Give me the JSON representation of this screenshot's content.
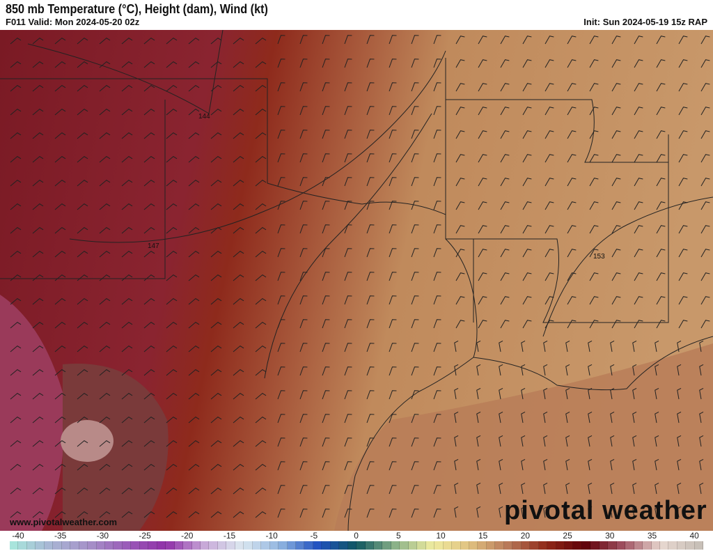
{
  "header": {
    "title": "850 mb Temperature (°C), Height (dam), Wind (kt)",
    "valid": "F011 Valid: Mon 2024-05-20 02z",
    "init": "Init: Sun 2024-05-19 15z RAP"
  },
  "map": {
    "contour_labels": [
      "144",
      "147",
      "153"
    ]
  },
  "footer": {
    "website": "www.pivotalweather.com",
    "logo": "pivotal weather"
  },
  "colorbar": {
    "labels": [
      "-40",
      "-35",
      "-30",
      "-25",
      "-20",
      "-15",
      "-10",
      "-5",
      "0",
      "5",
      "10",
      "15",
      "20",
      "25",
      "30",
      "35",
      "40"
    ],
    "stops": [
      "#a8e4dc",
      "#a8b4d4",
      "#a690c8",
      "#9a5ab8",
      "#9030a8",
      "#c8a8d8",
      "#dce8f0",
      "#90b4e0",
      "#2050c0",
      "#105860",
      "#88b088",
      "#f0eca0",
      "#e0c080",
      "#b87858",
      "#902818",
      "#600008",
      "#a05060",
      "#e8d8d0",
      "#c8c0b8"
    ]
  }
}
